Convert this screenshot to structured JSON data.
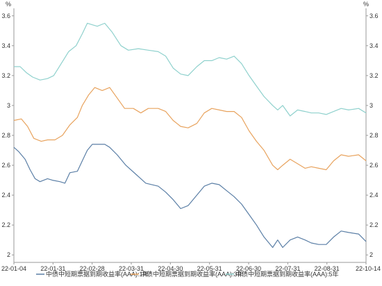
{
  "chart_data": {
    "type": "line",
    "y_unit": "%",
    "ylim": [
      1.95,
      3.65
    ],
    "y_ticks": [
      "2",
      "2.2",
      "2.4",
      "2.6",
      "2.8",
      "3",
      "3.2",
      "3.4",
      "3.6"
    ],
    "x_range": [
      "2022-01-04",
      "2022-10-14"
    ],
    "x_ticks": [
      "22-01-04",
      "22-01-31",
      "22-02-28",
      "22-03-31",
      "22-04-30",
      "22-05-31",
      "22-06-30",
      "22-07-31",
      "22-08-31",
      "22-10-14"
    ],
    "grid": false,
    "legend_position": "bottom",
    "series": [
      {
        "name": "中债中短期票据到期收益率(AAA):1年",
        "color": "#5b7fa6",
        "points": [
          [
            "2022-01-04",
            2.72
          ],
          [
            "2022-01-08",
            2.69
          ],
          [
            "2022-01-13",
            2.64
          ],
          [
            "2022-01-17",
            2.57
          ],
          [
            "2022-01-21",
            2.51
          ],
          [
            "2022-01-25",
            2.49
          ],
          [
            "2022-01-31",
            2.51
          ],
          [
            "2022-02-04",
            2.5
          ],
          [
            "2022-02-10",
            2.49
          ],
          [
            "2022-02-14",
            2.48
          ],
          [
            "2022-02-18",
            2.55
          ],
          [
            "2022-02-24",
            2.56
          ],
          [
            "2022-02-28",
            2.63
          ],
          [
            "2022-03-04",
            2.7
          ],
          [
            "2022-03-08",
            2.74
          ],
          [
            "2022-03-14",
            2.74
          ],
          [
            "2022-03-18",
            2.74
          ],
          [
            "2022-03-22",
            2.72
          ],
          [
            "2022-03-28",
            2.67
          ],
          [
            "2022-04-04",
            2.6
          ],
          [
            "2022-04-12",
            2.54
          ],
          [
            "2022-04-20",
            2.48
          ],
          [
            "2022-04-30",
            2.46
          ],
          [
            "2022-05-06",
            2.42
          ],
          [
            "2022-05-12",
            2.37
          ],
          [
            "2022-05-18",
            2.31
          ],
          [
            "2022-05-24",
            2.33
          ],
          [
            "2022-05-31",
            2.4
          ],
          [
            "2022-06-06",
            2.46
          ],
          [
            "2022-06-12",
            2.48
          ],
          [
            "2022-06-18",
            2.47
          ],
          [
            "2022-06-24",
            2.43
          ],
          [
            "2022-06-30",
            2.39
          ],
          [
            "2022-07-06",
            2.34
          ],
          [
            "2022-07-12",
            2.27
          ],
          [
            "2022-07-18",
            2.2
          ],
          [
            "2022-07-24",
            2.12
          ],
          [
            "2022-07-31",
            2.05
          ],
          [
            "2022-08-04",
            2.1
          ],
          [
            "2022-08-08",
            2.05
          ],
          [
            "2022-08-14",
            2.1
          ],
          [
            "2022-08-20",
            2.12
          ],
          [
            "2022-08-26",
            2.1
          ],
          [
            "2022-08-31",
            2.08
          ],
          [
            "2022-09-06",
            2.07
          ],
          [
            "2022-09-12",
            2.07
          ],
          [
            "2022-09-18",
            2.12
          ],
          [
            "2022-09-24",
            2.16
          ],
          [
            "2022-09-30",
            2.15
          ],
          [
            "2022-10-08",
            2.14
          ],
          [
            "2022-10-14",
            2.09
          ]
        ]
      },
      {
        "name": "中债中短期票据到期收益率(AAA):3年",
        "color": "#e8a35e",
        "points": [
          [
            "2022-01-04",
            2.9
          ],
          [
            "2022-01-10",
            2.91
          ],
          [
            "2022-01-15",
            2.86
          ],
          [
            "2022-01-20",
            2.78
          ],
          [
            "2022-01-26",
            2.76
          ],
          [
            "2022-01-31",
            2.77
          ],
          [
            "2022-02-06",
            2.77
          ],
          [
            "2022-02-12",
            2.8
          ],
          [
            "2022-02-18",
            2.87
          ],
          [
            "2022-02-24",
            2.92
          ],
          [
            "2022-02-28",
            3.0
          ],
          [
            "2022-03-05",
            3.07
          ],
          [
            "2022-03-10",
            3.12
          ],
          [
            "2022-03-16",
            3.1
          ],
          [
            "2022-03-22",
            3.12
          ],
          [
            "2022-03-28",
            3.05
          ],
          [
            "2022-04-03",
            2.98
          ],
          [
            "2022-04-10",
            2.98
          ],
          [
            "2022-04-16",
            2.95
          ],
          [
            "2022-04-22",
            2.98
          ],
          [
            "2022-04-30",
            2.98
          ],
          [
            "2022-05-06",
            2.96
          ],
          [
            "2022-05-12",
            2.9
          ],
          [
            "2022-05-18",
            2.86
          ],
          [
            "2022-05-24",
            2.85
          ],
          [
            "2022-05-31",
            2.88
          ],
          [
            "2022-06-06",
            2.95
          ],
          [
            "2022-06-12",
            2.98
          ],
          [
            "2022-06-18",
            2.97
          ],
          [
            "2022-06-24",
            2.96
          ],
          [
            "2022-06-30",
            2.96
          ],
          [
            "2022-07-06",
            2.92
          ],
          [
            "2022-07-12",
            2.83
          ],
          [
            "2022-07-18",
            2.76
          ],
          [
            "2022-07-24",
            2.7
          ],
          [
            "2022-07-31",
            2.6
          ],
          [
            "2022-08-04",
            2.57
          ],
          [
            "2022-08-08",
            2.6
          ],
          [
            "2022-08-14",
            2.64
          ],
          [
            "2022-08-20",
            2.61
          ],
          [
            "2022-08-26",
            2.58
          ],
          [
            "2022-08-31",
            2.59
          ],
          [
            "2022-09-06",
            2.58
          ],
          [
            "2022-09-12",
            2.57
          ],
          [
            "2022-09-18",
            2.63
          ],
          [
            "2022-09-24",
            2.67
          ],
          [
            "2022-09-30",
            2.66
          ],
          [
            "2022-10-08",
            2.67
          ],
          [
            "2022-10-14",
            2.63
          ]
        ]
      },
      {
        "name": "中债中短期票据到期收益率(AAA):5年",
        "color": "#8fd1cd",
        "points": [
          [
            "2022-01-04",
            3.26
          ],
          [
            "2022-01-09",
            3.26
          ],
          [
            "2022-01-14",
            3.22
          ],
          [
            "2022-01-19",
            3.19
          ],
          [
            "2022-01-25",
            3.17
          ],
          [
            "2022-01-31",
            3.18
          ],
          [
            "2022-02-05",
            3.2
          ],
          [
            "2022-02-11",
            3.28
          ],
          [
            "2022-02-17",
            3.36
          ],
          [
            "2022-02-23",
            3.4
          ],
          [
            "2022-02-28",
            3.48
          ],
          [
            "2022-03-04",
            3.55
          ],
          [
            "2022-03-08",
            3.54
          ],
          [
            "2022-03-12",
            3.53
          ],
          [
            "2022-03-18",
            3.55
          ],
          [
            "2022-03-24",
            3.49
          ],
          [
            "2022-03-31",
            3.4
          ],
          [
            "2022-04-06",
            3.37
          ],
          [
            "2022-04-14",
            3.38
          ],
          [
            "2022-04-22",
            3.37
          ],
          [
            "2022-04-30",
            3.36
          ],
          [
            "2022-05-06",
            3.33
          ],
          [
            "2022-05-12",
            3.25
          ],
          [
            "2022-05-18",
            3.21
          ],
          [
            "2022-05-24",
            3.2
          ],
          [
            "2022-05-31",
            3.26
          ],
          [
            "2022-06-06",
            3.3
          ],
          [
            "2022-06-12",
            3.3
          ],
          [
            "2022-06-18",
            3.32
          ],
          [
            "2022-06-24",
            3.31
          ],
          [
            "2022-06-30",
            3.33
          ],
          [
            "2022-07-06",
            3.28
          ],
          [
            "2022-07-12",
            3.2
          ],
          [
            "2022-07-18",
            3.13
          ],
          [
            "2022-07-24",
            3.06
          ],
          [
            "2022-07-31",
            3.0
          ],
          [
            "2022-08-04",
            2.97
          ],
          [
            "2022-08-08",
            3.0
          ],
          [
            "2022-08-14",
            2.93
          ],
          [
            "2022-08-20",
            2.97
          ],
          [
            "2022-08-26",
            2.96
          ],
          [
            "2022-08-31",
            2.95
          ],
          [
            "2022-09-06",
            2.95
          ],
          [
            "2022-09-12",
            2.94
          ],
          [
            "2022-09-18",
            2.96
          ],
          [
            "2022-09-24",
            2.98
          ],
          [
            "2022-09-30",
            2.97
          ],
          [
            "2022-10-08",
            2.98
          ],
          [
            "2022-10-14",
            2.95
          ]
        ]
      }
    ]
  }
}
